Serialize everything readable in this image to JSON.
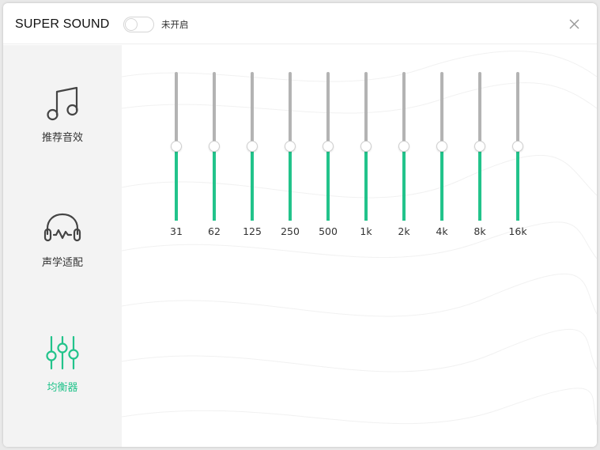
{
  "header": {
    "title": "SUPER SOUND",
    "toggle_status": "未开启",
    "toggle_on": false
  },
  "sidebar": {
    "items": [
      {
        "label": "推荐音效",
        "icon": "music-note-icon",
        "active": false
      },
      {
        "label": "声学适配",
        "icon": "headphones-icon",
        "active": false
      },
      {
        "label": "均衡器",
        "icon": "equalizer-icon",
        "active": true
      }
    ]
  },
  "equalizer": {
    "bands": [
      {
        "label": "31",
        "level": 0.5
      },
      {
        "label": "62",
        "level": 0.5
      },
      {
        "label": "125",
        "level": 0.5
      },
      {
        "label": "250",
        "level": 0.5
      },
      {
        "label": "500",
        "level": 0.5
      },
      {
        "label": "1k",
        "level": 0.5
      },
      {
        "label": "2k",
        "level": 0.5
      },
      {
        "label": "4k",
        "level": 0.5
      },
      {
        "label": "8k",
        "level": 0.5
      },
      {
        "label": "16k",
        "level": 0.5
      }
    ]
  },
  "colors": {
    "accent": "#22c38b",
    "track": "#b3b3b3",
    "sidebar_bg": "#f3f3f3"
  }
}
